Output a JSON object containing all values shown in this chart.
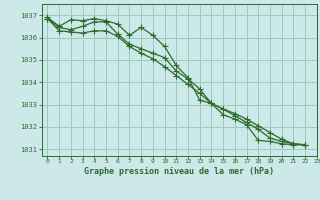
{
  "title": "Graphe pression niveau de la mer (hPa)",
  "background_color": "#cce8e8",
  "grid_color": "#99ccbb",
  "line_color": "#2d6b2d",
  "xlim": [
    -0.5,
    23
  ],
  "ylim": [
    1030.7,
    1037.5
  ],
  "yticks": [
    1031,
    1032,
    1033,
    1034,
    1035,
    1036,
    1037
  ],
  "xticks": [
    0,
    1,
    2,
    3,
    4,
    5,
    6,
    7,
    8,
    9,
    10,
    11,
    12,
    13,
    14,
    15,
    16,
    17,
    18,
    19,
    20,
    21,
    22,
    23
  ],
  "series1_x": [
    0,
    1,
    2,
    3,
    4,
    5,
    6,
    7,
    8,
    9,
    10,
    11,
    12,
    13,
    14,
    15,
    16,
    17,
    18,
    19,
    20,
    21,
    22
  ],
  "series1": [
    1036.9,
    1036.5,
    1036.8,
    1036.75,
    1036.85,
    1036.75,
    1036.6,
    1036.1,
    1036.45,
    1036.1,
    1035.6,
    1034.75,
    1034.2,
    1033.2,
    1033.05,
    1032.55,
    1032.35,
    1032.1,
    1031.4,
    1031.35,
    1031.25,
    1031.2,
    1031.2
  ],
  "series2_x": [
    0,
    1,
    2,
    3,
    4,
    5,
    6,
    7,
    8,
    9,
    10,
    11,
    12,
    13,
    14,
    15,
    16,
    17,
    18,
    19,
    20,
    21,
    22
  ],
  "series2": [
    1036.85,
    1036.45,
    1036.35,
    1036.5,
    1036.7,
    1036.7,
    1036.15,
    1035.7,
    1035.5,
    1035.3,
    1035.1,
    1034.5,
    1034.15,
    1033.7,
    1033.05,
    1032.8,
    1032.5,
    1032.2,
    1031.9,
    1031.5,
    1031.35,
    1031.25,
    1031.2
  ],
  "series3_x": [
    0,
    1,
    2,
    3,
    4,
    5,
    6,
    7,
    8,
    9,
    10,
    11,
    12,
    13,
    14,
    15,
    16,
    17,
    18,
    19,
    20,
    21,
    22
  ],
  "series3": [
    1036.85,
    1036.3,
    1036.25,
    1036.2,
    1036.3,
    1036.3,
    1036.05,
    1035.6,
    1035.3,
    1035.05,
    1034.7,
    1034.3,
    1033.9,
    1033.5,
    1033.05,
    1032.8,
    1032.6,
    1032.35,
    1032.05,
    1031.75,
    1031.45,
    1031.25,
    1031.2
  ]
}
